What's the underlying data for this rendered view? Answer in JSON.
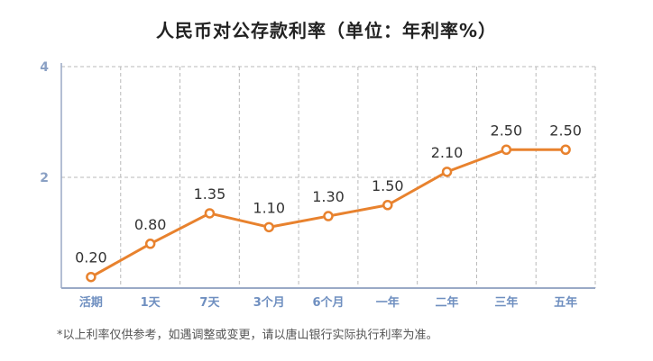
{
  "title": "人民币对公存款利率（单位：年利率%）",
  "footnote": "*以上利率仅供参考，如遇调整或变更，请以唐山银行实际执行利率为准。",
  "colors": {
    "line": "#e8822e",
    "grid": "#b9b9b9",
    "axis": "#9aa9c6",
    "tick": "#6f8fc0"
  },
  "chart_data": {
    "type": "line",
    "title": "人民币对公存款利率（单位：年利率%）",
    "xlabel": "",
    "ylabel": "",
    "categories": [
      "活期",
      "1天",
      "7天",
      "3个月",
      "6个月",
      "一年",
      "二年",
      "三年",
      "五年"
    ],
    "values": [
      0.2,
      0.8,
      1.35,
      1.1,
      1.3,
      1.5,
      2.1,
      2.5,
      2.5
    ],
    "labels": [
      "0.20",
      "0.80",
      "1.35",
      "1.10",
      "1.30",
      "1.50",
      "2.10",
      "2.50",
      "2.50"
    ],
    "yticks": [
      "2",
      "4"
    ],
    "ylim": [
      0,
      4
    ],
    "grid": true,
    "legend": "none"
  }
}
